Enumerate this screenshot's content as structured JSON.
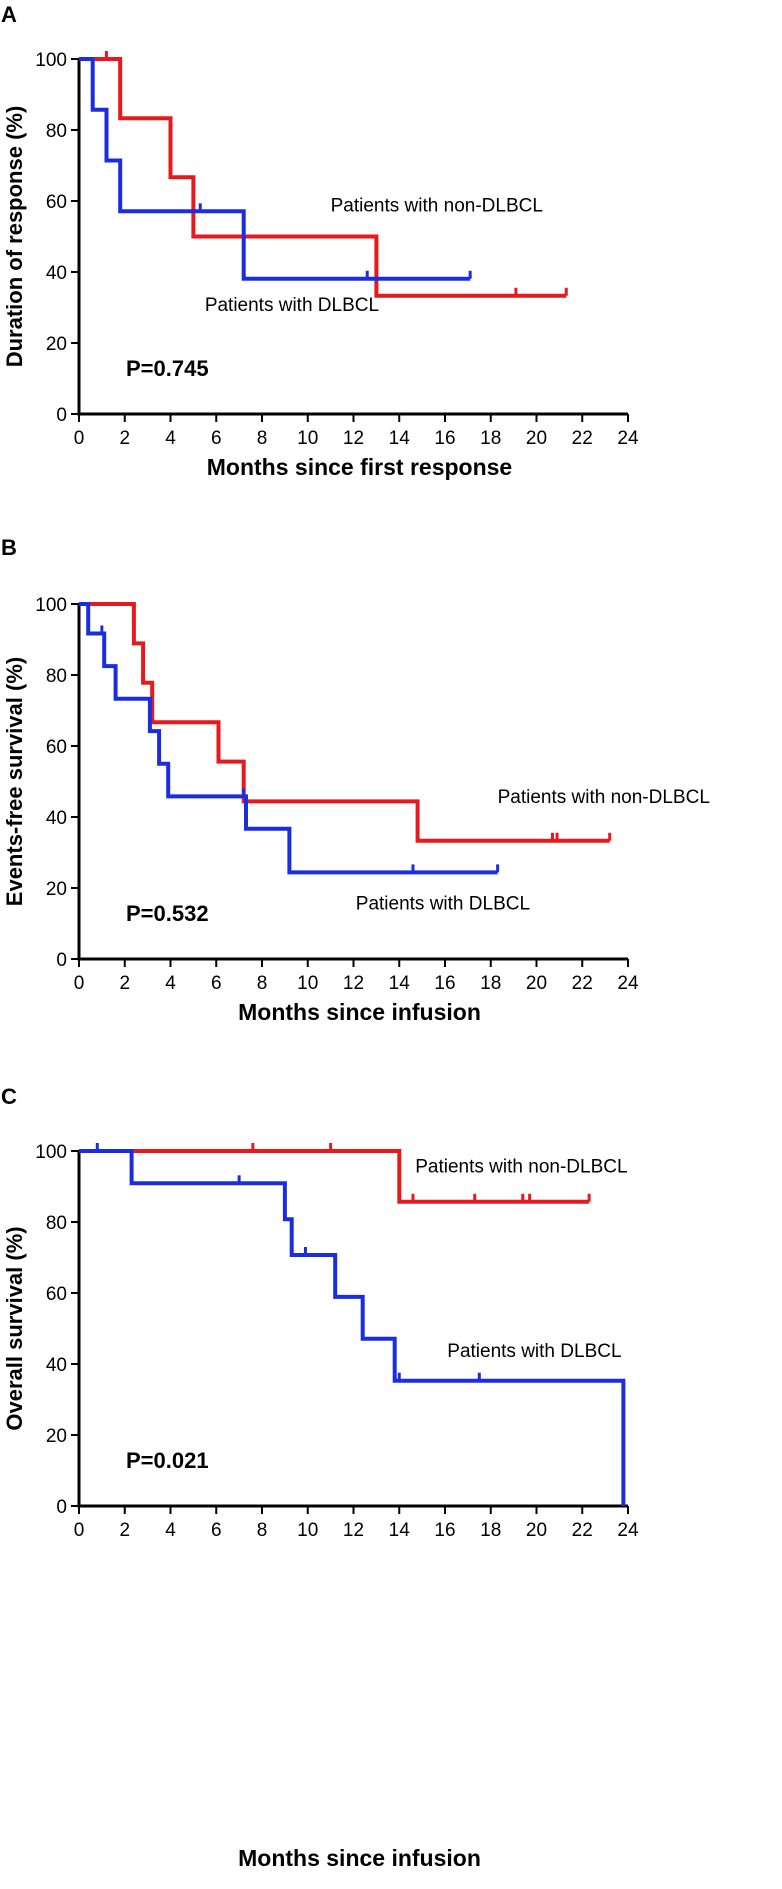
{
  "chart_data": [
    {
      "panel": "A",
      "type": "line",
      "subtype": "kaplan-meier",
      "xlabel": "Months since first response",
      "ylabel": "Duration of response (%)",
      "xlim": [
        0,
        24
      ],
      "ylim": [
        0,
        100
      ],
      "xticks": [
        "0",
        "2",
        "4",
        "6",
        "8",
        "10",
        "12",
        "14",
        "16",
        "18",
        "20",
        "22",
        "24"
      ],
      "yticks": [
        "0",
        "20",
        "40",
        "60",
        "80",
        "100"
      ],
      "p_value": "P=0.745",
      "series": [
        {
          "name": "Patients with non-DLBCL",
          "color": "#e8191c",
          "steps": [
            [
              0,
              100
            ],
            [
              1.8,
              100
            ],
            [
              1.8,
              83.3
            ],
            [
              4.0,
              83.3
            ],
            [
              4.0,
              66.7
            ],
            [
              5.0,
              66.7
            ],
            [
              5.0,
              50
            ],
            [
              13.0,
              50
            ],
            [
              13.0,
              33.3
            ],
            [
              21.3,
              33.3
            ]
          ],
          "censored": [
            [
              1.2,
              100
            ],
            [
              19.1,
              33.3
            ],
            [
              21.3,
              33.3
            ]
          ],
          "label": "Patients with non-DLBCL",
          "label_at": [
            11.0,
            57
          ]
        },
        {
          "name": "Patients with DLBCL",
          "color": "#1a2ee0",
          "steps": [
            [
              0,
              100
            ],
            [
              0.6,
              100
            ],
            [
              0.6,
              85.7
            ],
            [
              1.2,
              85.7
            ],
            [
              1.2,
              71.4
            ],
            [
              1.8,
              71.4
            ],
            [
              1.8,
              57.1
            ],
            [
              7.2,
              57.1
            ],
            [
              7.2,
              38.1
            ],
            [
              17.1,
              38.1
            ]
          ],
          "censored": [
            [
              5.3,
              57.1
            ],
            [
              12.6,
              38.1
            ],
            [
              17.1,
              38.1
            ]
          ],
          "label": "Patients with DLBCL",
          "label_at": [
            5.5,
            29
          ]
        }
      ]
    },
    {
      "panel": "B",
      "type": "line",
      "subtype": "kaplan-meier",
      "xlabel": "Months since infusion",
      "ylabel": "Events-free survival (%)",
      "xlim": [
        0,
        24
      ],
      "ylim": [
        0,
        100
      ],
      "xticks": [
        "0",
        "2",
        "4",
        "6",
        "8",
        "10",
        "12",
        "14",
        "16",
        "18",
        "20",
        "22",
        "24"
      ],
      "yticks": [
        "0",
        "20",
        "40",
        "60",
        "80",
        "100"
      ],
      "p_value": "P=0.532",
      "series": [
        {
          "name": "Patients with non-DLBCL",
          "color": "#e8191c",
          "steps": [
            [
              0,
              100
            ],
            [
              2.4,
              100
            ],
            [
              2.4,
              88.9
            ],
            [
              2.8,
              88.9
            ],
            [
              2.8,
              77.8
            ],
            [
              3.2,
              77.8
            ],
            [
              3.2,
              66.7
            ],
            [
              6.1,
              66.7
            ],
            [
              6.1,
              55.6
            ],
            [
              7.2,
              55.6
            ],
            [
              7.2,
              44.4
            ],
            [
              14.8,
              44.4
            ],
            [
              14.8,
              33.3
            ],
            [
              23.2,
              33.3
            ]
          ],
          "censored": [
            [
              20.7,
              33.3
            ],
            [
              20.9,
              33.3
            ],
            [
              23.2,
              33.3
            ]
          ],
          "label": "Patients with non-DLBCL",
          "label_at": [
            18.3,
            44
          ]
        },
        {
          "name": "Patients with DLBCL",
          "color": "#1a2ee0",
          "steps": [
            [
              0,
              100
            ],
            [
              0.4,
              100
            ],
            [
              0.4,
              91.7
            ],
            [
              1.1,
              91.7
            ],
            [
              1.1,
              82.5
            ],
            [
              1.6,
              82.5
            ],
            [
              1.6,
              73.3
            ],
            [
              3.1,
              73.3
            ],
            [
              3.1,
              64.2
            ],
            [
              3.5,
              64.2
            ],
            [
              3.5,
              55
            ],
            [
              3.9,
              55
            ],
            [
              3.9,
              45.8
            ],
            [
              7.3,
              45.8
            ],
            [
              7.3,
              36.7
            ],
            [
              9.2,
              36.7
            ],
            [
              9.2,
              24.4
            ],
            [
              18.3,
              24.4
            ]
          ],
          "censored": [
            [
              1.0,
              91.7
            ],
            [
              7.2,
              45.8
            ],
            [
              14.6,
              24.4
            ],
            [
              18.3,
              24.4
            ]
          ],
          "label": "Patients with DLBCL",
          "label_at": [
            12.1,
            14
          ]
        }
      ]
    },
    {
      "panel": "C",
      "type": "line",
      "subtype": "kaplan-meier",
      "xlabel": "Months since infusion",
      "ylabel": "Overall survival (%)",
      "xlim": [
        0,
        24
      ],
      "ylim": [
        0,
        100
      ],
      "xticks": [
        "0",
        "2",
        "4",
        "6",
        "8",
        "10",
        "12",
        "14",
        "16",
        "18",
        "20",
        "22",
        "24"
      ],
      "yticks": [
        "0",
        "20",
        "40",
        "60",
        "80",
        "100"
      ],
      "p_value": "P=0.021",
      "series": [
        {
          "name": "Patients with non-DLBCL",
          "color": "#e8191c",
          "steps": [
            [
              0,
              100
            ],
            [
              14.0,
              100
            ],
            [
              14.0,
              85.7
            ],
            [
              22.3,
              85.7
            ]
          ],
          "censored": [
            [
              7.6,
              100
            ],
            [
              11.0,
              100
            ],
            [
              14.6,
              85.7
            ],
            [
              17.3,
              85.7
            ],
            [
              19.4,
              85.7
            ],
            [
              19.7,
              85.7
            ],
            [
              22.3,
              85.7
            ]
          ],
          "label": "Patients with non-DLBCL",
          "label_at": [
            14.7,
            94
          ]
        },
        {
          "name": "Patients with DLBCL",
          "color": "#1a2ee0",
          "steps": [
            [
              0,
              100
            ],
            [
              2.3,
              100
            ],
            [
              2.3,
              90.9
            ],
            [
              9.0,
              90.9
            ],
            [
              9.0,
              80.8
            ],
            [
              9.3,
              80.8
            ],
            [
              9.3,
              70.7
            ],
            [
              11.2,
              70.7
            ],
            [
              11.2,
              58.9
            ],
            [
              12.4,
              58.9
            ],
            [
              12.4,
              47.1
            ],
            [
              13.8,
              47.1
            ],
            [
              13.8,
              35.3
            ],
            [
              23.8,
              35.3
            ],
            [
              23.8,
              0
            ]
          ],
          "censored": [
            [
              0.8,
              100
            ],
            [
              7.0,
              90.9
            ],
            [
              9.9,
              70.7
            ],
            [
              14.0,
              35.3
            ],
            [
              17.5,
              35.3
            ]
          ],
          "label": "Patients with DLBCL",
          "label_at": [
            16.1,
            42
          ]
        }
      ]
    }
  ]
}
